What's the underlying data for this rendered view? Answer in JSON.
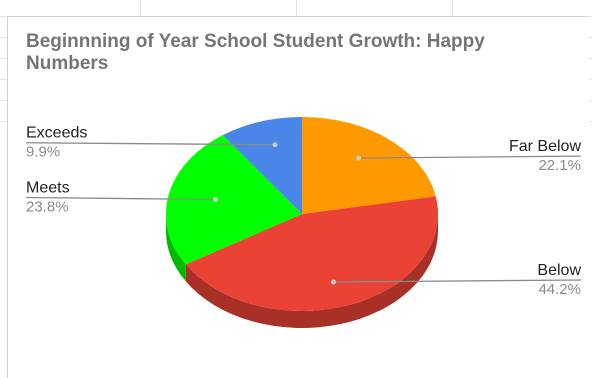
{
  "chart_data": {
    "type": "pie",
    "title": "Beginnning of Year School Student Growth: Happy Numbers",
    "style": "3d",
    "legend": "none",
    "slices": [
      {
        "label": "Far Below",
        "value": 22.1,
        "display": "22.1%",
        "color": "#ff9900"
      },
      {
        "label": "Below",
        "value": 44.2,
        "display": "44.2%",
        "color": "#ea4335"
      },
      {
        "label": "Meets",
        "value": 23.8,
        "display": "23.8%",
        "color": "#00ff00"
      },
      {
        "label": "Exceeds",
        "value": 9.9,
        "display": "9.9%",
        "color": "#4a86e8"
      }
    ]
  }
}
